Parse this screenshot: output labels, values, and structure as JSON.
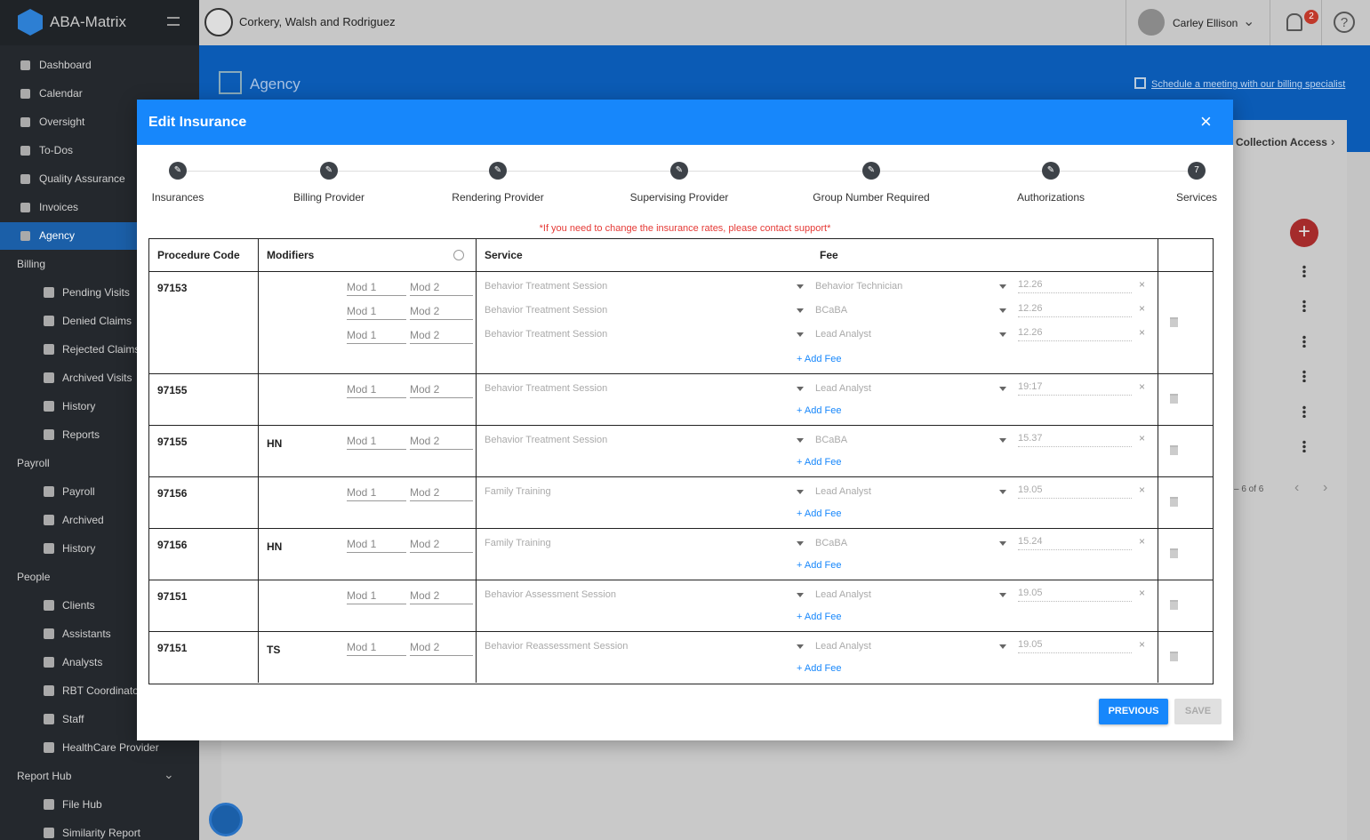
{
  "app": {
    "name": "ABA-Matrix",
    "organization": "Corkery, Walsh and Rodriguez",
    "user": "Carley Ellison",
    "notifications": "2"
  },
  "sidebar": {
    "top": [
      "Dashboard",
      "Calendar",
      "Oversight",
      "To-Dos",
      "Quality Assurance",
      "Invoices",
      "Agency"
    ],
    "sections": [
      {
        "title": "Billing",
        "items": [
          "Pending Visits",
          "Denied Claims",
          "Rejected Claims",
          "Archived Visits",
          "History",
          "Reports"
        ]
      },
      {
        "title": "Payroll",
        "items": [
          "Payroll",
          "Archived",
          "History"
        ]
      },
      {
        "title": "People",
        "items": [
          "Clients",
          "Assistants",
          "Analysts",
          "RBT Coordinators",
          "Staff",
          "HealthCare Provider"
        ]
      },
      {
        "title": "Report Hub",
        "items": [
          "File Hub",
          "Similarity Report"
        ]
      }
    ]
  },
  "page": {
    "title": "Agency",
    "schedule_link": "Schedule a meeting with our billing specialist",
    "tab": "Collection Access",
    "pagination": "– 6 of 6"
  },
  "modal": {
    "title": "Edit Insurance",
    "steps": [
      "Insurances",
      "Billing Provider",
      "Rendering Provider",
      "Supervising Provider",
      "Group Number Required",
      "Authorizations",
      "Services"
    ],
    "current_step": "7",
    "notice": "*If you need to change the insurance rates, please contact support*",
    "headers": [
      "Procedure Code",
      "Modifiers",
      "Service",
      "Fee"
    ],
    "placeholders": {
      "mod1": "Mod 1",
      "mod2": "Mod 2"
    },
    "add_fee": "+ Add Fee",
    "rows": [
      {
        "code": "97153",
        "fees": [
          {
            "service": "Behavior Treatment Session",
            "provider": "Behavior Technician",
            "fee": "12.26"
          },
          {
            "service": "Behavior Treatment Session",
            "provider": "BCaBA",
            "fee": "12.26"
          },
          {
            "service": "Behavior Treatment Session",
            "provider": "Lead Analyst",
            "fee": "12.26"
          }
        ]
      },
      {
        "code": "97155",
        "fees": [
          {
            "service": "Behavior Treatment Session",
            "provider": "Lead Analyst",
            "fee": "19:17"
          }
        ]
      },
      {
        "code": "97155",
        "modifier": "HN",
        "fees": [
          {
            "service": "Behavior Treatment Session",
            "provider": "BCaBA",
            "fee": "15.37"
          }
        ]
      },
      {
        "code": "97156",
        "fees": [
          {
            "service": "Family Training",
            "provider": "Lead Analyst",
            "fee": "19.05"
          }
        ]
      },
      {
        "code": "97156",
        "modifier": "HN",
        "fees": [
          {
            "service": "Family Training",
            "provider": "BCaBA",
            "fee": "15.24"
          }
        ]
      },
      {
        "code": "97151",
        "fees": [
          {
            "service": "Behavior Assessment Session",
            "provider": "Lead Analyst",
            "fee": "19.05"
          }
        ]
      },
      {
        "code": "97151",
        "modifier": "TS",
        "fees": [
          {
            "service": "Behavior Reassessment Session",
            "provider": "Lead Analyst",
            "fee": "19.05"
          }
        ]
      }
    ],
    "buttons": {
      "previous": "PREVIOUS",
      "save": "SAVE"
    }
  }
}
